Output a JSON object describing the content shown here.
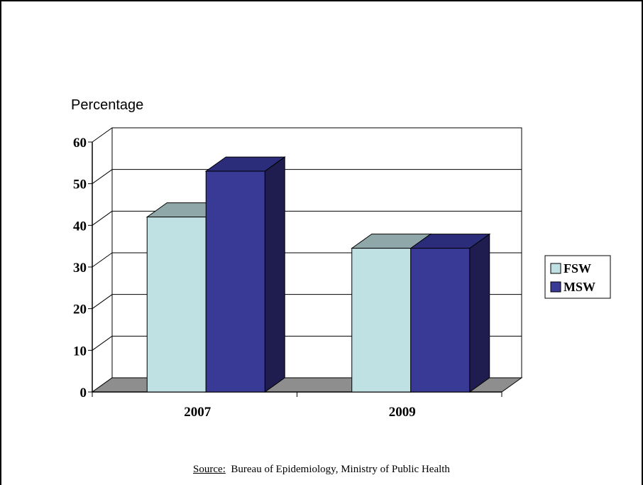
{
  "chart_data": {
    "type": "bar",
    "ylabel": "Percentage",
    "categories": [
      "2007",
      "2009"
    ],
    "series": [
      {
        "name": "FSW",
        "values": [
          42,
          34.5
        ],
        "color": "#bfe1e4",
        "top_color": "#8fa7a8"
      },
      {
        "name": "MSW",
        "values": [
          53,
          34.5
        ],
        "color": "#383a96",
        "top_color": "#2b2d7a",
        "side_color": "#1f1d4f"
      }
    ],
    "ylim": [
      0,
      60
    ],
    "yticks": [
      0,
      10,
      20,
      30,
      40,
      50,
      60
    ],
    "grid": true,
    "legend": "right",
    "floor_color": "#8e8e8e"
  },
  "footer": {
    "source_label": "Source:",
    "source_text": "Bureau of Epidemiology, Ministry of Public Health"
  }
}
